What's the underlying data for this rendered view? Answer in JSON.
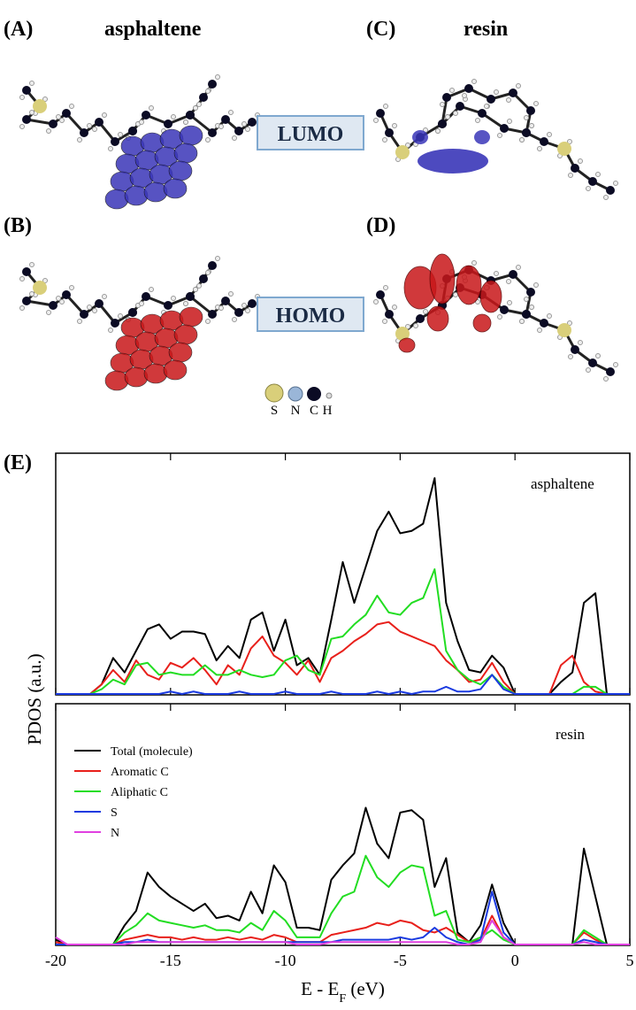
{
  "figure": {
    "a_label": "(A)",
    "a_title": "asphaltene",
    "c_label": "(C)",
    "c_title": "resin",
    "b_label": "(B)",
    "d_label": "(D)",
    "lumo": "LUMO",
    "homo": "HOMO",
    "atoms": [
      "S",
      "N",
      "C",
      "H"
    ],
    "e_label": "(E)"
  },
  "chart_data": [
    {
      "type": "line",
      "annotation": "asphaltene",
      "ylabel": "PDOS (a.u.)",
      "x": [
        -20,
        -19.5,
        -19,
        -18.5,
        -18,
        -17.5,
        -17,
        -16.5,
        -16,
        -15.5,
        -15,
        -14.5,
        -14,
        -13.5,
        -13,
        -12.5,
        -12,
        -11.5,
        -11,
        -10.5,
        -10,
        -9.5,
        -9,
        -8.5,
        -8,
        -7.5,
        -7,
        -6.5,
        -6,
        -5.5,
        -5,
        -4.5,
        -4,
        -3.5,
        -3,
        -2.5,
        -2,
        -1.5,
        -1,
        -0.5,
        0,
        0.5,
        1,
        1.5,
        2,
        2.5,
        3,
        3.5,
        4,
        4.5,
        5
      ],
      "xlim": [
        -20,
        5
      ],
      "ylim": [
        0,
        100
      ],
      "legend": false,
      "series": [
        {
          "color": "#000000",
          "values": [
            0,
            0,
            0,
            0,
            4,
            15,
            9,
            18,
            27,
            29,
            23,
            26,
            26,
            25,
            14,
            20,
            15,
            31,
            34,
            18,
            31,
            12,
            15,
            8,
            31,
            55,
            38,
            53,
            68,
            76,
            67,
            68,
            71,
            90,
            38,
            22,
            10,
            9,
            16,
            11,
            0,
            0,
            0,
            0,
            5,
            9,
            38,
            42,
            0,
            0,
            0
          ]
        },
        {
          "color": "#e8201b",
          "values": [
            0,
            0,
            0,
            0,
            4,
            10,
            5,
            14,
            8,
            6,
            13,
            11,
            15,
            10,
            4,
            12,
            8,
            19,
            24,
            16,
            13,
            8,
            14,
            5,
            15,
            18,
            22,
            25,
            29,
            30,
            26,
            24,
            22,
            20,
            14,
            10,
            5,
            6,
            13,
            5,
            0,
            0,
            0,
            0,
            12,
            16,
            5,
            1,
            0,
            0,
            0
          ]
        },
        {
          "color": "#22dd22",
          "values": [
            0,
            0,
            0,
            0,
            2,
            6,
            4,
            12,
            13,
            8,
            9,
            8,
            8,
            12,
            8,
            8,
            10,
            8,
            7,
            8,
            14,
            16,
            10,
            8,
            23,
            24,
            29,
            33,
            41,
            34,
            33,
            38,
            40,
            52,
            18,
            10,
            6,
            4,
            8,
            3,
            0,
            0,
            0,
            0,
            0,
            0,
            3,
            3,
            0,
            0,
            0
          ]
        },
        {
          "color": "#1a3ae0",
          "values": [
            0,
            0,
            0,
            0,
            0,
            0,
            0,
            0,
            0,
            0,
            1,
            0,
            1,
            0,
            0,
            0,
            1,
            0,
            0,
            0,
            1,
            0,
            0,
            0,
            1,
            0,
            0,
            0,
            1,
            0,
            1,
            0,
            1,
            1,
            3,
            1,
            1,
            2,
            8,
            2,
            0,
            0,
            0,
            0,
            0,
            0,
            0,
            0,
            0,
            0,
            0
          ]
        }
      ]
    },
    {
      "type": "line",
      "annotation": "resin",
      "xlabel": [
        "E - E",
        "F",
        " (eV)"
      ],
      "x": [
        -20,
        -19.5,
        -19,
        -18.5,
        -18,
        -17.5,
        -17,
        -16.5,
        -16,
        -15.5,
        -15,
        -14.5,
        -14,
        -13.5,
        -13,
        -12.5,
        -12,
        -11.5,
        -11,
        -10.5,
        -10,
        -9.5,
        -9,
        -8.5,
        -8,
        -7.5,
        -7,
        -6.5,
        -6,
        -5.5,
        -5,
        -4.5,
        -4,
        -3.5,
        -3,
        -2.5,
        -2,
        -1.5,
        -1,
        -0.5,
        0,
        0.5,
        1,
        1.5,
        2,
        2.5,
        3,
        3.5,
        4,
        4.5,
        5
      ],
      "xlim": [
        -20,
        5
      ],
      "ylim": [
        0,
        100
      ],
      "xticks": [
        -20,
        -15,
        -10,
        -5,
        0,
        5
      ],
      "legend": true,
      "series": [
        {
          "name": "Total (molecule)",
          "color": "#000000",
          "values": [
            2,
            0,
            0,
            0,
            0,
            0,
            8,
            14,
            30,
            24,
            20,
            17,
            14,
            17,
            11,
            12,
            10,
            22,
            13,
            33,
            26,
            7,
            7,
            6,
            27,
            33,
            38,
            57,
            42,
            36,
            55,
            56,
            52,
            24,
            36,
            5,
            1,
            8,
            25,
            9,
            0,
            0,
            0,
            0,
            0,
            0,
            40,
            20,
            0,
            0,
            0
          ]
        },
        {
          "name": "Aromatic C",
          "color": "#e8201b",
          "values": [
            1,
            0,
            0,
            0,
            0,
            0,
            2,
            3,
            4,
            3,
            3,
            2,
            3,
            2,
            2,
            3,
            2,
            3,
            2,
            4,
            3,
            1,
            1,
            1,
            4,
            5,
            6,
            7,
            9,
            8,
            10,
            9,
            6,
            5,
            7,
            4,
            1,
            2,
            12,
            3,
            0,
            0,
            0,
            0,
            0,
            0,
            5,
            2,
            0,
            0,
            0
          ]
        },
        {
          "name": "Aliphatic C",
          "color": "#22dd22",
          "values": [
            0,
            0,
            0,
            0,
            0,
            0,
            5,
            8,
            13,
            10,
            9,
            8,
            7,
            8,
            6,
            6,
            5,
            9,
            6,
            14,
            10,
            3,
            3,
            3,
            13,
            20,
            22,
            37,
            28,
            24,
            30,
            33,
            32,
            12,
            14,
            2,
            1,
            3,
            6,
            2,
            0,
            0,
            0,
            0,
            0,
            0,
            6,
            3,
            0,
            0,
            0
          ]
        },
        {
          "name": "S",
          "color": "#1a3ae0",
          "values": [
            0,
            0,
            0,
            0,
            0,
            0,
            1,
            1,
            2,
            1,
            1,
            1,
            1,
            1,
            1,
            1,
            1,
            1,
            1,
            1,
            1,
            1,
            1,
            1,
            1,
            2,
            2,
            2,
            2,
            2,
            3,
            2,
            3,
            7,
            3,
            1,
            0,
            2,
            22,
            5,
            0,
            0,
            0,
            0,
            0,
            0,
            2,
            1,
            0,
            0,
            0
          ]
        },
        {
          "name": "N",
          "color": "#e040e0",
          "values": [
            3,
            0,
            0,
            0,
            0,
            0,
            0,
            1,
            1,
            1,
            1,
            1,
            1,
            1,
            1,
            1,
            1,
            1,
            1,
            1,
            1,
            0,
            0,
            0,
            1,
            1,
            1,
            1,
            1,
            1,
            1,
            1,
            1,
            1,
            1,
            0,
            0,
            1,
            10,
            3,
            0,
            0,
            0,
            0,
            0,
            0,
            1,
            0,
            0,
            0,
            0
          ]
        }
      ]
    }
  ]
}
